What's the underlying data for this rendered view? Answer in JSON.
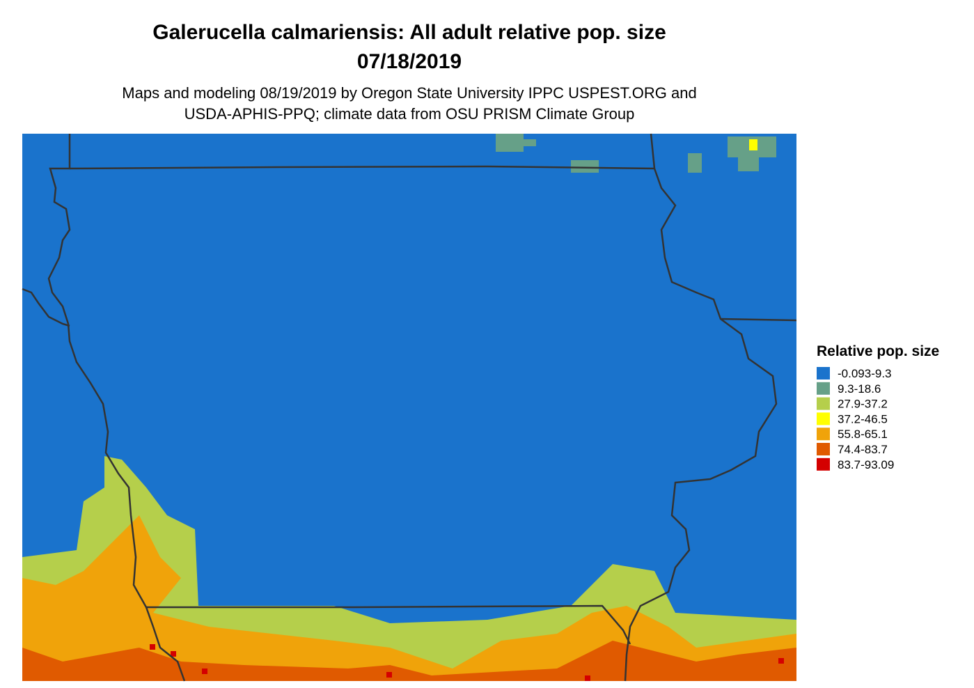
{
  "title": [
    "Galerucella calmariensis: All adult relative pop. size",
    "07/18/2019"
  ],
  "subtitle": [
    "Maps and modeling 08/19/2019 by Oregon State University IPPC USPEST.ORG and",
    "USDA-APHIS-PPQ; climate data from OSU PRISM Climate Group"
  ],
  "legend": {
    "title": "Relative pop. size",
    "items": [
      {
        "label": "-0.093-9.3",
        "color": "#1a73cc"
      },
      {
        "label": "9.3-18.6",
        "color": "#66a088"
      },
      {
        "label": "27.9-37.2",
        "color": "#b5cf4b"
      },
      {
        "label": "37.2-46.5",
        "color": "#ffff00"
      },
      {
        "label": "55.8-65.1",
        "color": "#f0a30a"
      },
      {
        "label": "74.4-83.7",
        "color": "#e05a00"
      },
      {
        "label": "83.7-93.09",
        "color": "#d40000"
      }
    ]
  }
}
